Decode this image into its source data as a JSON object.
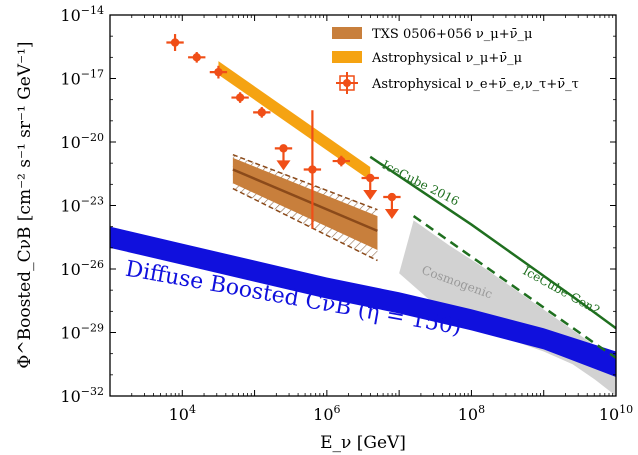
{
  "chart_data": {
    "type": "scatter",
    "xlabel": "E_ν [GeV]",
    "ylabel": "Φ^Boosted_CνB [cm⁻² s⁻¹ sr⁻¹ GeV⁻¹]",
    "log_x": true,
    "log_y": true,
    "xlim_exp": [
      3,
      10
    ],
    "ylim_exp": [
      -32,
      -14
    ],
    "x_ticks": [
      {
        "exp": 4,
        "label": "10",
        "sup": "4"
      },
      {
        "exp": 6,
        "label": "10",
        "sup": "6"
      },
      {
        "exp": 8,
        "label": "10",
        "sup": "8"
      },
      {
        "exp": 10,
        "label": "10",
        "sup": "10"
      }
    ],
    "y_ticks": [
      {
        "exp": -14,
        "label": "10",
        "sup": "−14"
      },
      {
        "exp": -17,
        "label": "10",
        "sup": "−17"
      },
      {
        "exp": -20,
        "label": "10",
        "sup": "−20"
      },
      {
        "exp": -23,
        "label": "10",
        "sup": "−23"
      },
      {
        "exp": -26,
        "label": "10",
        "sup": "−26"
      },
      {
        "exp": -29,
        "label": "10",
        "sup": "−29"
      },
      {
        "exp": -32,
        "label": "10",
        "sup": "−32"
      }
    ],
    "legend": [
      {
        "text": "TXS 0506+056 ν_μ+ν̄_μ",
        "color": "#c87f3c",
        "kind": "patch"
      },
      {
        "text": "Astrophysical ν_μ+ν̄_μ",
        "color": "#f5a312",
        "kind": "patch"
      },
      {
        "text": "Astrophysical ν_e+ν̄_e,ν_τ+ν̄_τ",
        "color": "#f04e17",
        "kind": "marker"
      }
    ],
    "colors": {
      "boosted": "#1010dd",
      "icecube2016": "#1f6f1f",
      "gen2": "#1f6f1f",
      "cosmogenic": "#d2d2d2",
      "astro_mu": "#f5a312",
      "txs_fill": "#c87f3c",
      "txs_line": "#8b4a1a",
      "points": "#f04e17"
    },
    "annotations": {
      "boosted": "Diffuse Boosted CνB (η = 150)",
      "icecube2016": "IceCube 2016",
      "gen2": "IceCube Gen2",
      "cosmogenic": "Cosmogenic"
    },
    "series": {
      "boosted_band": {
        "x": [
          3.0,
          4.0,
          5.0,
          6.0,
          7.0,
          8.0,
          9.0,
          10.0
        ],
        "y_low": [
          -25.0,
          -25.8,
          -26.6,
          -27.4,
          -28.1,
          -28.9,
          -29.8,
          -31.1
        ],
        "y_high": [
          -24.0,
          -24.8,
          -25.6,
          -26.4,
          -27.1,
          -27.9,
          -28.8,
          -29.9
        ]
      },
      "icecube2016": {
        "x": [
          6.6,
          7.3,
          8.0,
          8.7,
          9.4,
          10.0
        ],
        "y": [
          -20.7,
          -22.3,
          -23.9,
          -25.6,
          -27.3,
          -28.8
        ]
      },
      "icecube_gen2": {
        "x": [
          7.2,
          7.7,
          8.2,
          8.7,
          9.2,
          9.7,
          10.0
        ],
        "y": [
          -23.5,
          -24.7,
          -25.9,
          -27.1,
          -28.3,
          -29.5,
          -30.2
        ]
      },
      "cosmogenic": {
        "x_upper": [
          7.0,
          7.2,
          7.7,
          8.2,
          8.7,
          9.2,
          9.7,
          10.0
        ],
        "y_upper": [
          -26.2,
          -23.7,
          -24.9,
          -26.0,
          -27.2,
          -28.4,
          -29.6,
          -30.2
        ],
        "x_lower": [
          10.0,
          9.7,
          9.4,
          9.0,
          8.5,
          8.0,
          7.5,
          7.0
        ],
        "y_lower": [
          -32.0,
          -31.2,
          -30.5,
          -29.9,
          -29.3,
          -28.6,
          -27.7,
          -26.2
        ]
      },
      "astro_mu_band": {
        "x": [
          4.5,
          6.6
        ],
        "y_center": [
          -16.5,
          -21.5
        ],
        "half_width": 0.32
      },
      "txs_band": {
        "x": [
          4.7,
          6.7
        ],
        "y_upper": [
          -20.6,
          -23.2
        ],
        "y_lower": [
          -22.2,
          -25.6
        ],
        "y_center": [
          -21.3,
          -24.2
        ]
      },
      "astro_e_tau_points": [
        {
          "x": 3.9,
          "y": -15.3,
          "xerr": 0.12,
          "yerr": 0.4,
          "upper_limit": false
        },
        {
          "x": 4.2,
          "y": -16.0,
          "xerr": 0.12,
          "yerr": 0.25,
          "upper_limit": false
        },
        {
          "x": 4.5,
          "y": -16.7,
          "xerr": 0.12,
          "yerr": 0.3,
          "upper_limit": false
        },
        {
          "x": 4.8,
          "y": -17.9,
          "xerr": 0.12,
          "yerr": 0.25,
          "upper_limit": false
        },
        {
          "x": 5.1,
          "y": -18.6,
          "xerr": 0.12,
          "yerr": 0.25,
          "upper_limit": false
        },
        {
          "x": 5.4,
          "y": -20.3,
          "xerr": 0.12,
          "yerr": 0.35,
          "upper_limit": true
        },
        {
          "x": 5.8,
          "y": -21.3,
          "xerr": 0.12,
          "yerr": 2.8,
          "upper_limit": false
        },
        {
          "x": 6.2,
          "y": -20.9,
          "xerr": 0.12,
          "yerr": 0.25,
          "upper_limit": false
        },
        {
          "x": 6.6,
          "y": -21.7,
          "xerr": 0.12,
          "yerr": 0.3,
          "upper_limit": true
        },
        {
          "x": 6.9,
          "y": -22.6,
          "xerr": 0.12,
          "yerr": 0.3,
          "upper_limit": true
        }
      ]
    }
  }
}
